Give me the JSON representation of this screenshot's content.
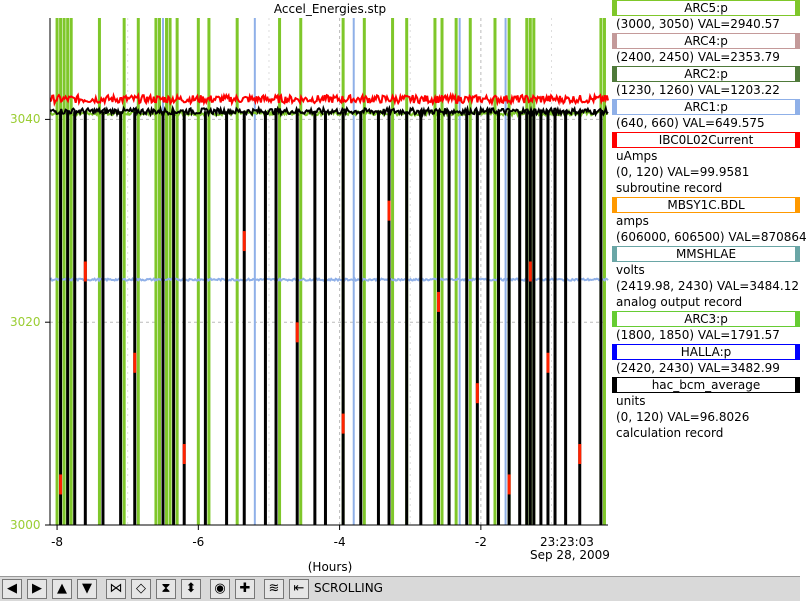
{
  "window": {
    "title": "Accel_Energies.stp"
  },
  "chart_data": {
    "type": "line",
    "title": "Accel_Energies.stp",
    "xlabel": "(Hours)",
    "ylabel": "",
    "xlim": [
      -8.1,
      -0.2
    ],
    "ylim": [
      3000,
      3050
    ],
    "grid": true,
    "x_ticks": [
      -8,
      -6,
      -4,
      -2
    ],
    "x_tick_labels": [
      "-8",
      "-6",
      "-4",
      "-2"
    ],
    "y_ticks": [
      3000,
      3020,
      3040
    ],
    "y_tick_labels": [
      "3000",
      "3020",
      "3040"
    ],
    "x_end_label_time": "23:23:03",
    "x_end_label_date": "Sep 28, 2009",
    "series": [
      {
        "name": "ARC5:p",
        "color": "#7fc72a",
        "level": 3040.6,
        "noise": 0.2
      },
      {
        "name": "IBC0L02Current",
        "color": "#ff0000",
        "level": 3042.0,
        "noise": 0.4
      },
      {
        "name": "hac_bcm_average",
        "color": "#000000",
        "level": 3040.8,
        "noise": 0.3
      },
      {
        "name": "ARC1:p",
        "color": "#8fb0e8",
        "level": 3024.2,
        "noise": 0.1
      }
    ],
    "green_drops_x": [
      -8.0,
      -7.95,
      -7.9,
      -7.85,
      -7.8,
      -7.4,
      -7.05,
      -6.85,
      -6.6,
      -6.55,
      -6.45,
      -6.4,
      -6.3,
      -6.0,
      -5.85,
      -5.45,
      -4.85,
      -4.55,
      -3.95,
      -3.65,
      -3.25,
      -3.05,
      -2.65,
      -2.55,
      -2.35,
      -2.15,
      -1.8,
      -1.6,
      -1.35,
      -1.3,
      -1.25,
      -0.3,
      -0.25
    ],
    "blue_drops_x": [
      -6.5,
      -5.2,
      -3.8,
      -2.3,
      -1.65
    ],
    "black_drops_x": [
      -7.95,
      -7.85,
      -7.75,
      -7.6,
      -7.35,
      -7.1,
      -6.9,
      -6.5,
      -6.35,
      -6.2,
      -5.9,
      -5.6,
      -5.35,
      -5.05,
      -4.9,
      -4.6,
      -4.35,
      -4.2,
      -3.95,
      -3.7,
      -3.45,
      -3.3,
      -3.05,
      -2.85,
      -2.6,
      -2.45,
      -2.2,
      -2.05,
      -1.9,
      -1.75,
      -1.6,
      -1.45,
      -1.35,
      -1.3,
      -1.25,
      -1.15,
      -1.05,
      -0.95,
      -0.8,
      -0.6,
      -0.3
    ]
  },
  "legend": [
    {
      "label": "ARC5:p",
      "color": "#7fc72a",
      "lines": [
        "(3000, 3050) VAL=2940.57"
      ]
    },
    {
      "label": "ARC4:p",
      "color": "#c49a9a",
      "lines": [
        "(2400, 2450) VAL=2353.79"
      ]
    },
    {
      "label": "ARC2:p",
      "color": "#4f7a3a",
      "lines": [
        "(1230, 1260) VAL=1203.22"
      ]
    },
    {
      "label": "ARC1:p",
      "color": "#8fb0e8",
      "lines": [
        "(640, 660) VAL=649.575"
      ]
    },
    {
      "label": "IBC0L02Current",
      "color": "#ff0000",
      "lines": [
        "uAmps",
        "(0, 120) VAL=99.9581",
        "subroutine record"
      ]
    },
    {
      "label": "MBSY1C.BDL",
      "color": "#ff9900",
      "lines": [
        "amps",
        "(606000, 606500) VAL=870864"
      ]
    },
    {
      "label": "MMSHLAE",
      "color": "#6aa6a6",
      "lines": [
        "volts",
        "(2419.98, 2430) VAL=3484.12",
        "analog output record"
      ]
    },
    {
      "label": "ARC3:p",
      "color": "#66cc33",
      "lines": [
        "(1800, 1850) VAL=1791.57"
      ]
    },
    {
      "label": "HALLA:p",
      "color": "#0000ff",
      "lines": [
        "(2420, 2430) VAL=3482.99"
      ]
    },
    {
      "label": "hac_bcm_average",
      "color": "#000000",
      "lines": [
        "units",
        "(0, 120) VAL=96.8026",
        "calculation record"
      ]
    }
  ],
  "toolbar": {
    "buttons": [
      {
        "name": "scroll-left-button",
        "glyph": "◀"
      },
      {
        "name": "scroll-right-button",
        "glyph": "▶"
      },
      {
        "name": "scroll-up-button",
        "glyph": "▲"
      },
      {
        "name": "scroll-down-button",
        "glyph": "▼"
      },
      {
        "name": "zoom-in-x-button",
        "glyph": "⋈"
      },
      {
        "name": "zoom-out-x-button",
        "glyph": "◇"
      },
      {
        "name": "zoom-in-y-button",
        "glyph": "⧗"
      },
      {
        "name": "zoom-out-y-button",
        "glyph": "⬍"
      },
      {
        "name": "autoscale-button",
        "glyph": "◉"
      },
      {
        "name": "add-button",
        "glyph": "✚"
      },
      {
        "name": "stagger-button",
        "glyph": "≋"
      },
      {
        "name": "scroll-mode-button",
        "glyph": "⇤"
      }
    ],
    "status": "SCROLLING"
  }
}
